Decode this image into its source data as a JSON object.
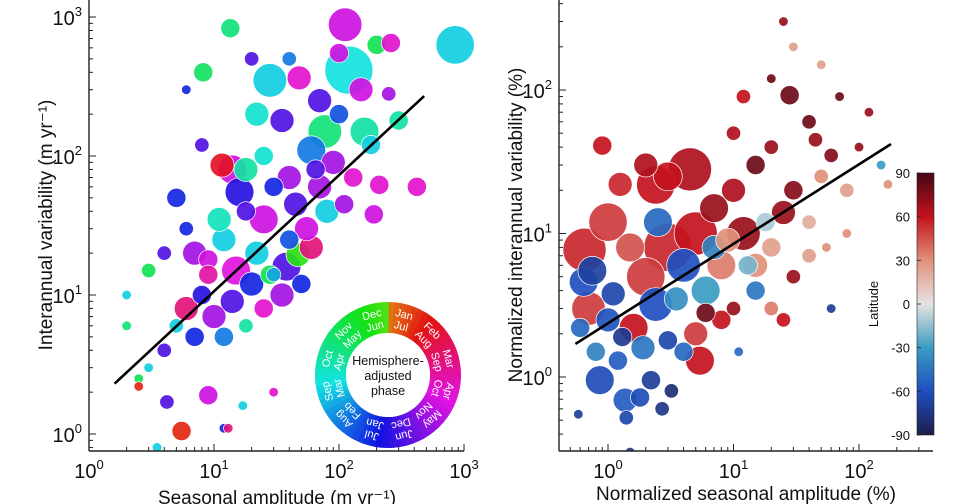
{
  "chart_data": [
    {
      "type": "scatter",
      "panel": "left",
      "xlabel": "Seasonal amplitude (m yr⁻¹)",
      "ylabel": "Interannual variability (m yr⁻¹)",
      "xscale": "log",
      "yscale": "log",
      "xlim": [
        1,
        1000
      ],
      "ylim": [
        0.75,
        1250
      ],
      "xticks": [
        {
          "base": "10",
          "exp": "0"
        },
        {
          "base": "10",
          "exp": "1"
        },
        {
          "base": "10",
          "exp": "2"
        },
        {
          "base": "10",
          "exp": "3"
        }
      ],
      "yticks": [
        {
          "base": "10",
          "exp": "0"
        },
        {
          "base": "10",
          "exp": "1"
        },
        {
          "base": "10",
          "exp": "2"
        },
        {
          "base": "10",
          "exp": "3"
        }
      ],
      "grid": false,
      "color_encoding": "hemisphere-adjusted phase (month)",
      "point_fields": [
        "x",
        "y",
        "size",
        "phase_month"
      ],
      "points": [
        [
          112,
          880,
          7,
          4.5
        ],
        [
          850,
          630,
          8,
          9
        ],
        [
          120,
          415,
          10,
          9.3
        ],
        [
          28,
          350,
          7,
          9
        ],
        [
          13.5,
          830,
          4,
          10.5
        ],
        [
          8.2,
          400,
          4,
          10.8
        ],
        [
          200,
          630,
          4,
          11
        ],
        [
          48,
          365,
          5,
          4
        ],
        [
          22,
          200,
          5,
          9.5
        ],
        [
          14,
          80,
          6,
          4.5
        ],
        [
          11.6,
          86,
          5,
          2
        ],
        [
          77,
          150,
          7,
          10.5
        ],
        [
          210,
          62,
          4,
          4
        ],
        [
          190,
          38,
          4,
          4.5
        ],
        [
          47,
          19.5,
          5,
          12
        ],
        [
          150,
          300,
          5,
          4.5
        ],
        [
          60,
          110,
          6,
          8
        ],
        [
          35,
          180,
          5,
          6
        ],
        [
          100,
          200,
          4,
          7.5
        ],
        [
          250,
          280,
          3,
          5
        ],
        [
          70,
          60,
          5,
          5
        ],
        [
          30,
          60,
          4,
          7
        ],
        [
          18,
          40,
          4,
          6
        ],
        [
          25,
          35,
          6,
          4.5
        ],
        [
          40,
          25,
          4,
          7.5
        ],
        [
          12,
          25,
          5,
          9
        ],
        [
          9,
          18,
          4,
          4.5
        ],
        [
          15,
          15,
          6,
          4.2
        ],
        [
          20,
          12,
          5,
          7
        ],
        [
          8,
          10,
          4,
          6.5
        ],
        [
          6,
          8,
          5,
          3
        ],
        [
          10,
          7,
          5,
          5
        ],
        [
          5,
          6,
          3,
          9
        ],
        [
          7,
          5,
          4,
          7
        ],
        [
          4,
          4,
          3,
          6
        ],
        [
          12,
          5,
          4,
          8
        ],
        [
          18,
          6,
          3,
          10
        ],
        [
          25,
          8,
          4,
          4
        ],
        [
          35,
          10,
          5,
          5
        ],
        [
          50,
          12,
          4,
          7
        ],
        [
          60,
          22,
          5,
          3
        ],
        [
          80,
          40,
          5,
          9
        ],
        [
          110,
          45,
          4,
          5
        ],
        [
          45,
          45,
          5,
          6
        ],
        [
          30,
          14,
          3,
          8.5
        ],
        [
          3,
          3,
          2,
          9
        ],
        [
          2.5,
          2.5,
          2,
          11
        ],
        [
          2.5,
          2.2,
          2,
          1.5
        ],
        [
          3.5,
          0.8,
          2,
          9
        ],
        [
          5.5,
          1.05,
          4,
          1.5
        ],
        [
          9,
          1.9,
          4,
          4.5
        ],
        [
          4.2,
          1.7,
          3,
          6
        ],
        [
          12,
          1.1,
          2,
          7
        ],
        [
          13,
          1.1,
          2,
          3
        ],
        [
          17,
          1.6,
          2,
          9
        ],
        [
          30,
          2,
          2,
          4
        ],
        [
          2,
          10,
          2,
          9
        ],
        [
          2,
          6,
          2,
          10.5
        ],
        [
          3,
          15,
          3,
          11
        ],
        [
          4,
          20,
          3,
          6
        ],
        [
          6,
          30,
          3,
          7
        ],
        [
          5,
          50,
          4,
          7
        ],
        [
          8,
          120,
          3,
          6
        ],
        [
          6,
          300,
          2,
          7
        ],
        [
          18,
          80,
          5,
          10
        ],
        [
          25,
          100,
          4,
          9.5
        ],
        [
          40,
          70,
          5,
          5
        ],
        [
          16,
          55,
          6,
          6.5
        ],
        [
          11,
          35,
          5,
          9.7
        ],
        [
          7,
          20,
          5,
          5
        ],
        [
          9,
          14,
          4,
          3.5
        ],
        [
          14,
          9,
          5,
          6
        ],
        [
          22,
          20,
          5,
          9
        ],
        [
          28,
          14,
          4,
          11
        ],
        [
          38,
          16,
          6,
          6
        ],
        [
          55,
          30,
          5,
          4.5
        ],
        [
          65,
          80,
          4,
          6
        ],
        [
          90,
          90,
          5,
          5
        ],
        [
          130,
          70,
          4,
          4
        ],
        [
          160,
          150,
          6,
          10
        ],
        [
          300,
          180,
          4,
          10
        ],
        [
          420,
          60,
          4,
          4
        ],
        [
          180,
          120,
          4,
          9
        ],
        [
          70,
          250,
          5,
          6
        ],
        [
          100,
          550,
          4,
          4.5
        ],
        [
          260,
          650,
          4,
          4
        ],
        [
          40,
          500,
          3,
          8
        ],
        [
          20,
          500,
          3,
          6
        ]
      ],
      "fit_line": [
        [
          1.6,
          2.3
        ],
        [
          480,
          270
        ]
      ],
      "fit_color": "#000000",
      "legend": {
        "type": "phase-wheel",
        "center_text": [
          "Hemisphere-",
          "adjusted",
          "phase"
        ],
        "outer_months": [
          "Jan",
          "Feb",
          "Mar",
          "Apr",
          "May",
          "Jun",
          "Jul",
          "Aug",
          "Sep",
          "Oct",
          "Nov",
          "Dec"
        ],
        "inner_months": [
          "Jul",
          "Aug",
          "Sep",
          "Oct",
          "Nov",
          "Dec",
          "Jan",
          "Feb",
          "Mar",
          "Apr",
          "May",
          "Jun"
        ],
        "placement": "bottom-right"
      }
    },
    {
      "type": "scatter",
      "panel": "right",
      "xlabel": "Normalized seasonal amplitude (%)",
      "ylabel": "Normalized interannual variability (%)",
      "xscale": "log",
      "yscale": "log",
      "xlim": [
        0.4,
        400
      ],
      "ylim": [
        0.3,
        420
      ],
      "xticks": [
        {
          "base": "10",
          "exp": "0"
        },
        {
          "base": "10",
          "exp": "1"
        },
        {
          "base": "10",
          "exp": "2"
        }
      ],
      "yticks": [
        {
          "base": "10",
          "exp": "0"
        },
        {
          "base": "10",
          "exp": "1"
        },
        {
          "base": "10",
          "exp": "2"
        }
      ],
      "grid": false,
      "color_encoding": "latitude",
      "point_fields": [
        "x",
        "y",
        "size",
        "latitude"
      ],
      "points": [
        [
          0.65,
          7.7,
          9,
          55
        ],
        [
          0.64,
          4.6,
          6,
          -60
        ],
        [
          0.7,
          3,
          7,
          50
        ],
        [
          2.4,
          21.8,
          8,
          60
        ],
        [
          4.5,
          28,
          9,
          65
        ],
        [
          1.25,
          22,
          5,
          55
        ],
        [
          0.9,
          41,
          4,
          60
        ],
        [
          28,
          92,
          4,
          80
        ],
        [
          5.4,
          1.3,
          6,
          60
        ],
        [
          1.37,
          0.69,
          5,
          -55
        ],
        [
          0.86,
          0.95,
          6,
          -62
        ],
        [
          2.4,
          3.2,
          7,
          -60
        ],
        [
          0.58,
          0.55,
          2,
          -70
        ],
        [
          1.5,
          0.3,
          2,
          -75
        ],
        [
          1.4,
          0.52,
          3,
          -65
        ],
        [
          2.7,
          0.6,
          3,
          -75
        ],
        [
          1.8,
          0.72,
          4,
          -62
        ],
        [
          3.2,
          0.8,
          3,
          -80
        ],
        [
          1.2,
          1.3,
          4,
          -55
        ],
        [
          1.9,
          1.6,
          5,
          -45
        ],
        [
          3,
          1.8,
          4,
          -65
        ],
        [
          1,
          2.5,
          5,
          -58
        ],
        [
          1.6,
          2.2,
          6,
          60
        ],
        [
          0.8,
          1.5,
          4,
          -40
        ],
        [
          2,
          5,
          8,
          50
        ],
        [
          3,
          8,
          10,
          55
        ],
        [
          1.5,
          8,
          6,
          45
        ],
        [
          1,
          12,
          8,
          50
        ],
        [
          2.5,
          12,
          6,
          -50
        ],
        [
          4,
          6,
          7,
          -60
        ],
        [
          5,
          10,
          9,
          60
        ],
        [
          6,
          4,
          6,
          -30
        ],
        [
          8,
          6,
          6,
          35
        ],
        [
          7,
          15,
          6,
          70
        ],
        [
          10,
          20,
          5,
          65
        ],
        [
          12,
          10,
          7,
          70
        ],
        [
          15,
          6,
          5,
          30
        ],
        [
          20,
          8,
          4,
          25
        ],
        [
          25,
          14,
          5,
          70
        ],
        [
          30,
          20,
          4,
          75
        ],
        [
          40,
          12,
          3,
          20
        ],
        [
          50,
          25,
          3,
          30
        ],
        [
          60,
          35,
          3,
          75
        ],
        [
          80,
          20,
          3,
          25
        ],
        [
          100,
          40,
          2,
          70
        ],
        [
          40,
          60,
          3,
          80
        ],
        [
          20,
          40,
          3,
          70
        ],
        [
          15,
          30,
          4,
          80
        ],
        [
          10,
          50,
          3,
          65
        ],
        [
          12,
          90,
          3,
          60
        ],
        [
          20,
          120,
          2,
          80
        ],
        [
          30,
          200,
          2,
          25
        ],
        [
          25,
          300,
          2,
          70
        ],
        [
          50,
          150,
          2,
          25
        ],
        [
          70,
          90,
          2,
          80
        ],
        [
          120,
          70,
          2,
          70
        ],
        [
          150,
          30,
          2,
          -30
        ],
        [
          170,
          22,
          2,
          30
        ],
        [
          8,
          2.5,
          4,
          60
        ],
        [
          10,
          3,
          3,
          70
        ],
        [
          15,
          4,
          4,
          -45
        ],
        [
          20,
          3,
          3,
          35
        ],
        [
          30,
          5,
          3,
          70
        ],
        [
          40,
          7,
          3,
          25
        ],
        [
          60,
          3,
          2,
          -70
        ],
        [
          80,
          10,
          2,
          30
        ],
        [
          5,
          2,
          5,
          50
        ],
        [
          4,
          1.5,
          4,
          -50
        ],
        [
          3.5,
          3.5,
          5,
          -35
        ],
        [
          6,
          2.8,
          4,
          80
        ],
        [
          7,
          8,
          5,
          -40
        ],
        [
          9,
          9,
          5,
          30
        ],
        [
          3,
          25,
          6,
          60
        ],
        [
          2,
          30,
          5,
          65
        ],
        [
          1.1,
          3.8,
          5,
          -65
        ],
        [
          0.75,
          5.5,
          6,
          -68
        ],
        [
          0.6,
          2.2,
          4,
          -50
        ],
        [
          1.3,
          1.9,
          4,
          -72
        ],
        [
          2.2,
          0.95,
          4,
          -70
        ],
        [
          11,
          1.5,
          2,
          -50
        ],
        [
          25,
          2.5,
          3,
          60
        ],
        [
          18,
          12,
          4,
          -10
        ],
        [
          13,
          6,
          4,
          -20
        ],
        [
          45,
          45,
          3,
          70
        ],
        [
          55,
          8,
          2,
          30
        ]
      ],
      "fit_line": [
        [
          0.55,
          1.7
        ],
        [
          180,
          42
        ]
      ],
      "fit_color": "#000000",
      "colorbar": {
        "label": "Latitude",
        "ticks": [
          "90",
          "60",
          "30",
          "0",
          "-30",
          "-60",
          "-90"
        ],
        "range": [
          -90,
          90
        ],
        "colors": {
          "-90": "#1c1d4a",
          "-60": "#1f4fbf",
          "-30": "#3b9cc2",
          "0": "#e6e3e3",
          "30": "#e0917b",
          "60": "#c3121e",
          "90": "#420815"
        }
      }
    }
  ]
}
